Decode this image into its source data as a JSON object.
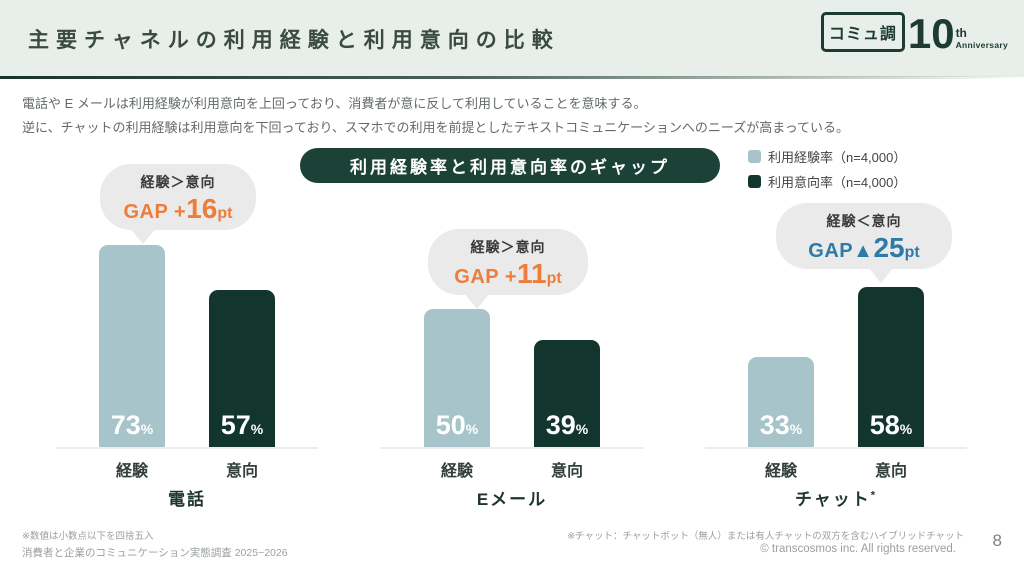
{
  "header": {
    "title": "主要チャネルの利用経験と利用意向の比較",
    "logo": {
      "mark": "コミュ調",
      "number": "10",
      "suffix": "th",
      "anniversary": "Anniversary"
    }
  },
  "intro": {
    "line1": "電話や E メールは利用経験が利用意向を上回っており、消費者が意に反して利用していることを意味する。",
    "line2": "逆に、チャットの利用経験は利用意向を下回っており、スマホでの利用を前提としたテキストコミュニケーションへのニーズが高まっている。"
  },
  "legend": [
    {
      "label": "利用経験率（n=4,000）",
      "color": "#a6c4c9"
    },
    {
      "label": "利用意向率（n=4,000）",
      "color": "#12362e"
    }
  ],
  "chart_data": {
    "type": "bar",
    "title": "利用経験率と利用意向率のギャップ",
    "categories": [
      "電話",
      "Eメール",
      "チャット*"
    ],
    "bar_labels": [
      "経験",
      "意向"
    ],
    "unit": "%",
    "ylim": [
      0,
      80
    ],
    "series": [
      {
        "name": "利用経験率（n=4,000）",
        "color": "#a6c4c9",
        "values": [
          73,
          50,
          33
        ]
      },
      {
        "name": "利用意向率（n=4,000）",
        "color": "#12362e",
        "values": [
          57,
          39,
          58
        ]
      }
    ],
    "gaps": [
      {
        "relation": "経験＞意向",
        "prefix": "GAP +",
        "value": "16",
        "suffix": "pt",
        "color": "#ed7d3b"
      },
      {
        "relation": "経験＞意向",
        "prefix": "GAP +",
        "value": "11",
        "suffix": "pt",
        "color": "#ed7d3b"
      },
      {
        "relation": "経験＜意向",
        "prefix": "GAP▲",
        "value": "25",
        "suffix": "pt",
        "color": "#2d7ca7"
      }
    ]
  },
  "footer": {
    "note_values": "※数値は小数点以下を四捨五入",
    "survey": "消費者と企業のコミュニケーション実態調査 2025−2026",
    "note_chat": "※チャット：チャットボット（無人）または有人チャットの双方を含むハイブリッドチャット",
    "copyright": "© transcosmos inc. All rights reserved.",
    "page": "8"
  }
}
